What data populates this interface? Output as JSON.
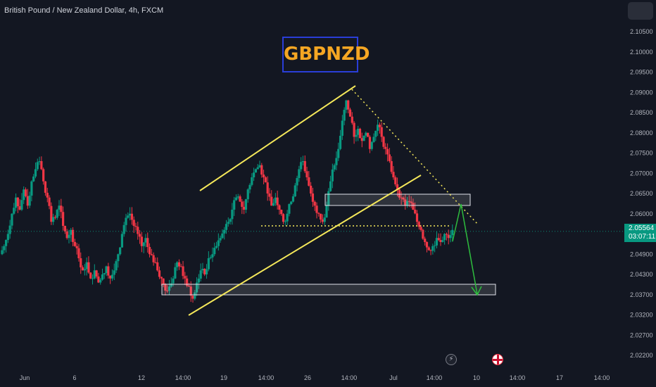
{
  "header": {
    "symbol_title": "British Pound / New Zealand Dollar, 4h, FXCM",
    "badge": "GBPNZD"
  },
  "price_tag": {
    "price": "2.05564",
    "countdown": "03:07:11"
  },
  "colors": {
    "background": "#131722",
    "up_candle": "#089981",
    "down_candle": "#f23645",
    "trend_lines": "#f5e85a",
    "forecast_arrow": "#2ebd3e",
    "badge_text": "#f5a623",
    "badge_border": "#2a3ed8"
  },
  "icons": [
    "lightning-icon",
    "uk-flag-icon"
  ],
  "chart_data": {
    "type": "candlestick",
    "title": "British Pound / New Zealand Dollar, 4h, FXCM",
    "ylim": [
      2.027,
      2.108
    ],
    "y_ticks": [
      "2.10500",
      "2.10000",
      "2.09500",
      "2.09000",
      "2.08500",
      "2.08000",
      "2.07500",
      "2.07000",
      "2.06500",
      "2.06000",
      "2.05500",
      "2.04900",
      "2.04300",
      "2.03700",
      "2.03200",
      "2.02700",
      "2.02200"
    ],
    "x_ticks": [
      "Jun",
      "6",
      "12",
      "14:00",
      "19",
      "14:00",
      "26",
      "14:00",
      "Jul",
      "14:00",
      "10",
      "14:00",
      "17",
      "14:00"
    ],
    "grid": false,
    "last_price": 2.05564,
    "candles_close_path": [
      2.052,
      2.055,
      2.06,
      2.064,
      2.061,
      2.066,
      2.062,
      2.068,
      2.071,
      2.073,
      2.068,
      2.064,
      2.058,
      2.059,
      2.062,
      2.057,
      2.054,
      2.056,
      2.052,
      2.049,
      2.046,
      2.048,
      2.044,
      2.046,
      2.043,
      2.045,
      2.047,
      2.044,
      2.046,
      2.05,
      2.055,
      2.059,
      2.06,
      2.057,
      2.055,
      2.052,
      2.054,
      2.05,
      2.048,
      2.046,
      2.044,
      2.041,
      2.042,
      2.044,
      2.048,
      2.047,
      2.044,
      2.042,
      2.039,
      2.043,
      2.046,
      2.045,
      2.049,
      2.05,
      2.052,
      2.054,
      2.056,
      2.058,
      2.061,
      2.064,
      2.063,
      2.061,
      2.066,
      2.069,
      2.071,
      2.072,
      2.069,
      2.065,
      2.062,
      2.064,
      2.061,
      2.058,
      2.06,
      2.063,
      2.067,
      2.071,
      2.073,
      2.069,
      2.065,
      2.062,
      2.06,
      2.058,
      2.062,
      2.068,
      2.072,
      2.076,
      2.083,
      2.088,
      2.084,
      2.079,
      2.081,
      2.078,
      2.08,
      2.076,
      2.079,
      2.082,
      2.079,
      2.076,
      2.073,
      2.069,
      2.066,
      2.064,
      2.062,
      2.063,
      2.061,
      2.058,
      2.056,
      2.053,
      2.051,
      2.052,
      2.054,
      2.053,
      2.055,
      2.054,
      2.056
    ],
    "annotations": {
      "ascending_channel_upper": [
        {
          "t": "19",
          "p": 2.065
        },
        {
          "t": "26 14:00",
          "p": 2.0915
        }
      ],
      "ascending_channel_lower": [
        {
          "t": "14:00 (Jun 14)",
          "p": 2.0345
        },
        {
          "t": "Jul",
          "p": 2.0675
        }
      ],
      "descending_trendline": [
        {
          "t": "26 14:00",
          "p": 2.0905
        },
        {
          "t": "Jul 14:00",
          "p": 2.0575
        }
      ],
      "neckline_dotted": 2.0568,
      "resistance_zone": [
        2.0615,
        2.064
      ],
      "support_zone": [
        2.0398,
        2.042
      ],
      "forecast_path": [
        2.0555,
        2.0625,
        2.0395
      ]
    }
  }
}
